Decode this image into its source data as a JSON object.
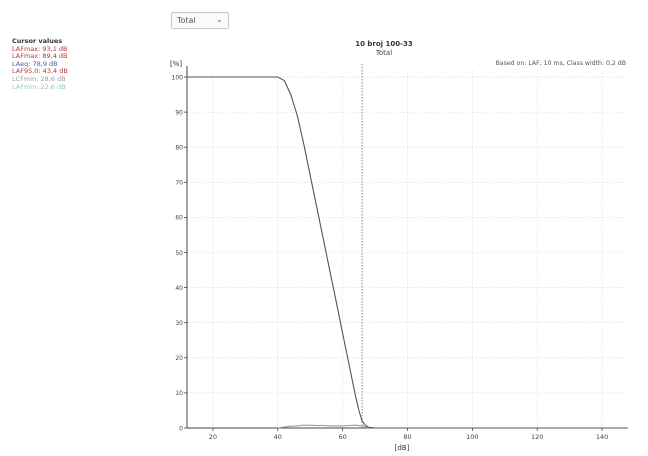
{
  "selector": {
    "value": "Total",
    "options": [
      "Total"
    ]
  },
  "cursor_panel": {
    "title": "Cursor values",
    "items": [
      {
        "text": "LAFmax: 93,1 dB",
        "color": "#b03a3a"
      },
      {
        "text": "LAFmax: 89,4 dB",
        "color": "#b03a3a"
      },
      {
        "text": "LAeq: 78,9 dB",
        "color": "#4a5fb0"
      },
      {
        "text": "LAF95,0: 43,4 dB",
        "color": "#b03a3a"
      },
      {
        "text": "LCFmin: 28,6 dB",
        "color": "#9c9c9c"
      },
      {
        "text": "LAFmin: 22,6 dB",
        "color": "#8fc9b8"
      }
    ]
  },
  "chart_data": {
    "type": "line",
    "title": "10 broj 100-33",
    "subtitle": "Total",
    "note": "Based on: LAF, 10 ms, Class width: 0,2 dB",
    "xlabel": "[dB]",
    "ylabel": "[%]",
    "xlim": [
      12,
      148
    ],
    "ylim": [
      0,
      102
    ],
    "xticks": [
      20,
      40,
      60,
      80,
      100,
      120,
      140
    ],
    "yticks": [
      0,
      10,
      20,
      30,
      40,
      50,
      60,
      70,
      80,
      90,
      100
    ],
    "grid": true,
    "cursor_x": 66,
    "series": [
      {
        "color": "#555555",
        "x": [
          12,
          40,
          42,
          44,
          46,
          48,
          50,
          52,
          54,
          56,
          58,
          60,
          62,
          64,
          65,
          66,
          67,
          68,
          70,
          148
        ],
        "y": [
          100,
          100,
          99,
          95,
          89,
          81,
          72,
          63,
          54,
          45,
          36,
          27,
          18,
          9,
          5,
          2,
          0.8,
          0.2,
          0,
          0
        ]
      },
      {
        "color": "#9a9a9a",
        "x": [
          40,
          42,
          44,
          46,
          48,
          50,
          52,
          54,
          56,
          58,
          60,
          62,
          64,
          66,
          68
        ],
        "y": [
          0,
          0.3,
          0.5,
          0.6,
          0.8,
          0.8,
          0.7,
          0.7,
          0.6,
          0.6,
          0.6,
          0.7,
          0.8,
          0.6,
          0
        ]
      }
    ]
  }
}
